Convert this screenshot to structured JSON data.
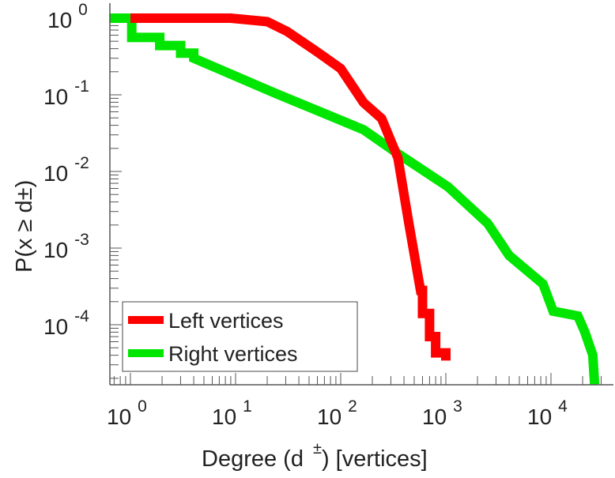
{
  "chart_data": {
    "type": "line",
    "title": "",
    "xlabel": "Degree (d ±) [vertices]",
    "xlabel_parts": {
      "pre": "Degree (d",
      "sup": "±",
      "post": ") [vertices]"
    },
    "ylabel": "P(x ≥ d±)",
    "ylabel_parts": {
      "pre": "P(x ≥ d",
      "sup": "±",
      "post": ")"
    },
    "xscale": "log",
    "yscale": "log",
    "xlim": [
      0.63,
      40000
    ],
    "ylim": [
      1.66e-05,
      1.55
    ],
    "x_ticks": [
      {
        "base": "10",
        "exp": "0",
        "value": 1
      },
      {
        "base": "10",
        "exp": "1",
        "value": 10
      },
      {
        "base": "10",
        "exp": "2",
        "value": 100
      },
      {
        "base": "10",
        "exp": "3",
        "value": 1000
      },
      {
        "base": "10",
        "exp": "4",
        "value": 10000
      }
    ],
    "y_ticks": [
      {
        "base": "10",
        "exp": "0",
        "value": 1
      },
      {
        "base": "10",
        "exp": "-1",
        "value": 0.1
      },
      {
        "base": "10",
        "exp": "-2",
        "value": 0.01
      },
      {
        "base": "10",
        "exp": "-3",
        "value": 0.001
      },
      {
        "base": "10",
        "exp": "-4",
        "value": 0.0001
      }
    ],
    "grid": false,
    "legend_position": "bottom-left",
    "series": [
      {
        "name": "Left vertices",
        "color": "#ff0000",
        "x": [
          1,
          9,
          20,
          31,
          62,
          100,
          165,
          245,
          350,
          445,
          575,
          600,
          600,
          700,
          700,
          800,
          800,
          1000,
          1000
        ],
        "y": [
          1,
          1,
          0.9,
          0.67,
          0.35,
          0.22,
          0.079,
          0.049,
          0.015,
          0.0021,
          0.00028,
          0.00028,
          0.00014,
          0.00014,
          7e-05,
          7e-05,
          4.3e-05,
          4.3e-05,
          3.4e-05
        ]
      },
      {
        "name": "Right vertices",
        "color": "#00e600",
        "x": [
          0.63,
          1.03,
          1.03,
          1.9,
          1.9,
          3,
          3,
          4,
          4,
          23,
          165,
          330,
          1050,
          2500,
          4000,
          8400,
          10500,
          18000,
          21000,
          25000,
          26000
        ],
        "y": [
          1,
          1,
          0.56,
          0.56,
          0.44,
          0.44,
          0.35,
          0.35,
          0.3,
          0.107,
          0.035,
          0.018,
          0.0063,
          0.0021,
          0.0008,
          0.00034,
          0.00015,
          0.00013,
          8e-05,
          4e-05,
          1.66e-05
        ]
      }
    ]
  }
}
